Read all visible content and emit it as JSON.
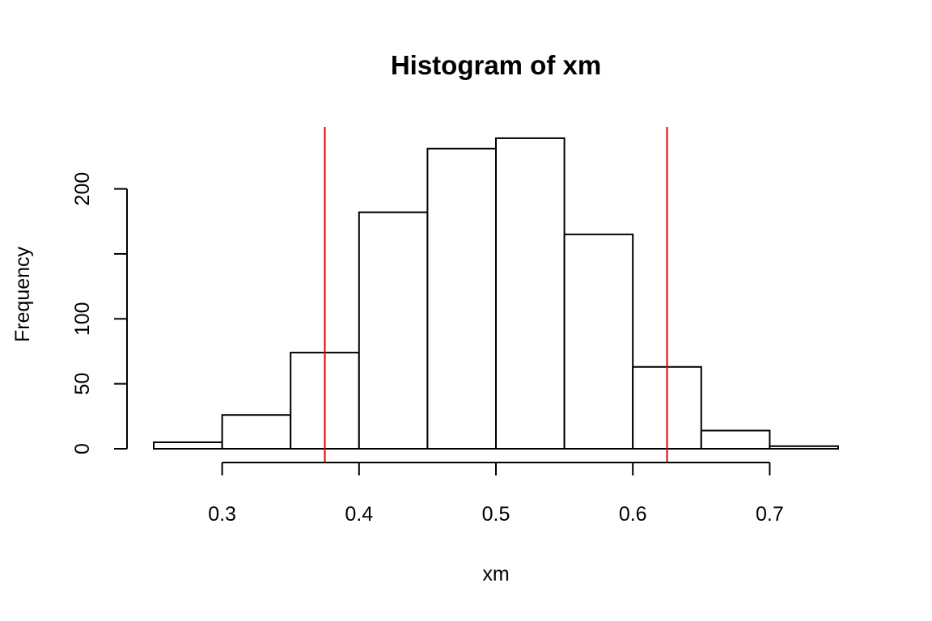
{
  "chart_data": {
    "type": "bar",
    "title": "Histogram of xm",
    "xlabel": "xm",
    "ylabel": "Frequency",
    "bin_edges": [
      0.25,
      0.3,
      0.35,
      0.4,
      0.45,
      0.5,
      0.55,
      0.6,
      0.65,
      0.7,
      0.75
    ],
    "values": [
      5,
      26,
      74,
      182,
      231,
      239,
      165,
      63,
      14,
      2
    ],
    "xlim": [
      0.25,
      0.75
    ],
    "ylim": [
      0,
      239
    ],
    "x_ticks": [
      0.3,
      0.4,
      0.5,
      0.6,
      0.7
    ],
    "x_tick_labels": [
      "0.3",
      "0.4",
      "0.5",
      "0.6",
      "0.7"
    ],
    "y_ticks": [
      0,
      50,
      100,
      150,
      200
    ],
    "y_tick_labels": [
      "0",
      "50",
      "100",
      "",
      "200"
    ],
    "vlines": [
      0.375,
      0.625
    ],
    "vline_color": "#dd0000",
    "bar_fill": "#ffffff",
    "bar_stroke": "#000000",
    "grid": false,
    "legend": "none"
  }
}
